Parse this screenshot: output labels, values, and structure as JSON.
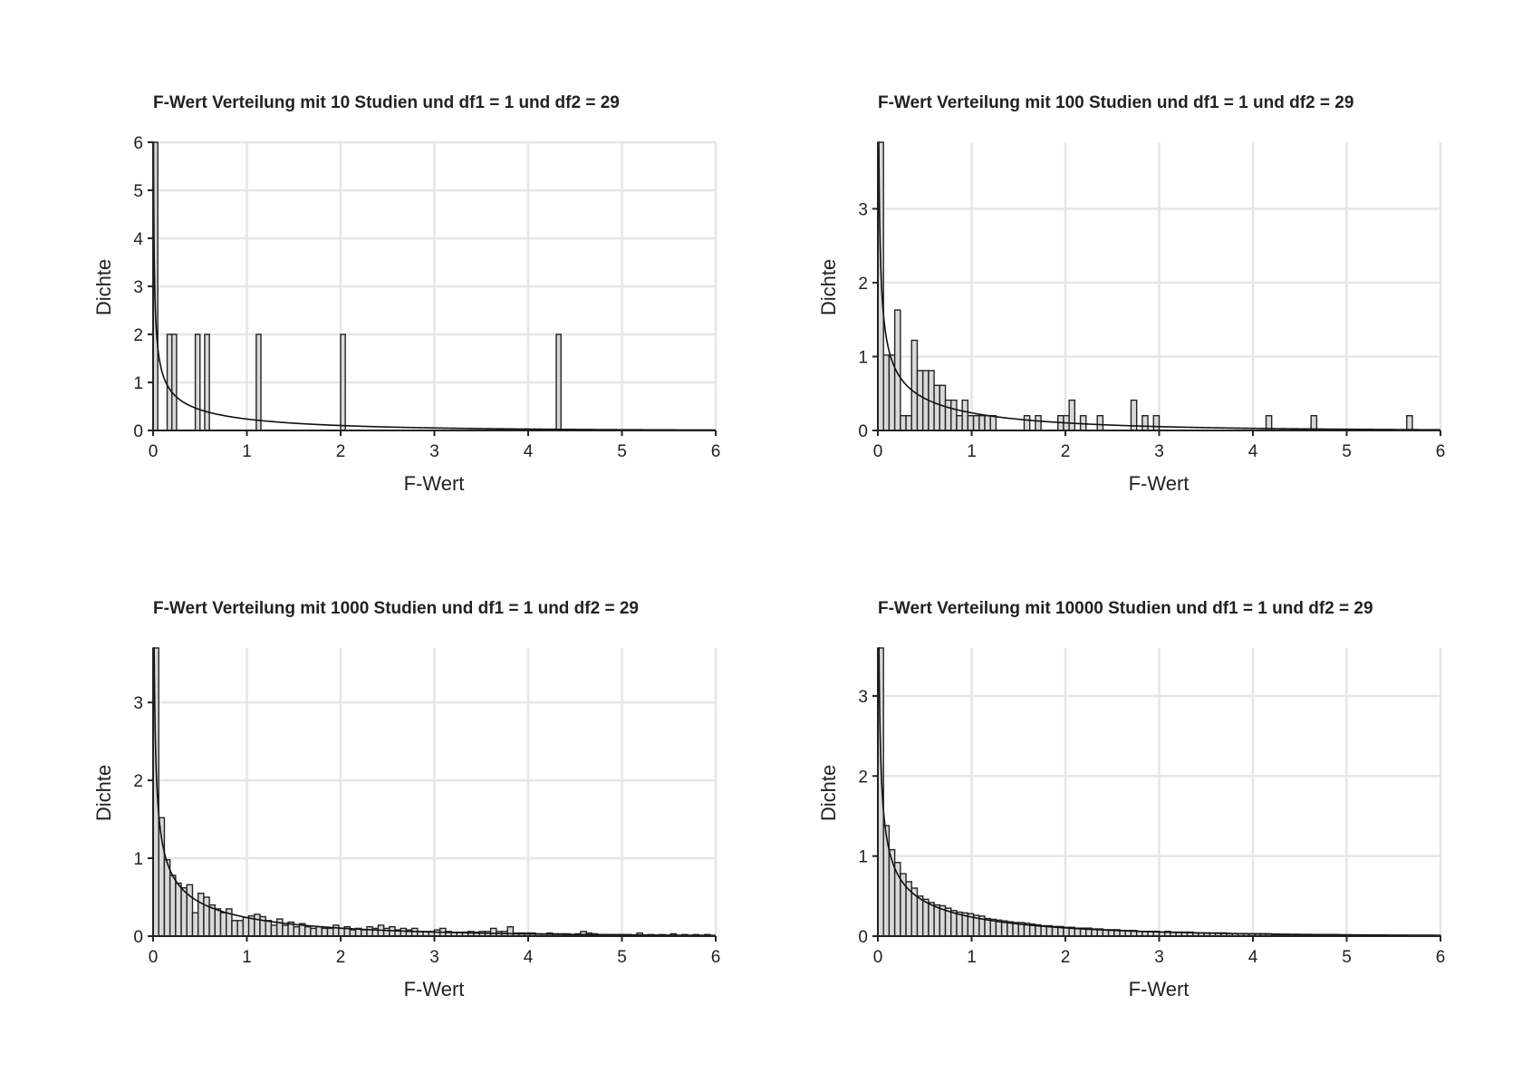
{
  "chart_data": [
    {
      "type": "bar",
      "title": "F-Wert Verteilung mit 10 Studien und df1 = 1 und df2 = 29",
      "xlabel": "F-Wert",
      "ylabel": "Dichte",
      "xlim": [
        0,
        6
      ],
      "ylim": [
        0,
        6
      ],
      "xticks": [
        0,
        1,
        2,
        3,
        4,
        5,
        6
      ],
      "yticks": [
        0,
        1,
        2,
        3,
        4,
        5,
        6
      ],
      "bin_width": 0.05,
      "grid": true,
      "density_curve": {
        "df1": 1,
        "df2": 29
      },
      "bars": [
        {
          "x": 0.0,
          "y": 6.0
        },
        {
          "x": 0.15,
          "y": 2.0
        },
        {
          "x": 0.2,
          "y": 2.0
        },
        {
          "x": 0.45,
          "y": 2.0
        },
        {
          "x": 0.55,
          "y": 2.0
        },
        {
          "x": 1.1,
          "y": 2.0
        },
        {
          "x": 2.0,
          "y": 2.0
        },
        {
          "x": 4.3,
          "y": 2.0
        }
      ]
    },
    {
      "type": "bar",
      "title": "F-Wert Verteilung mit 100 Studien und df1 = 1 und df2 = 29",
      "xlabel": "F-Wert",
      "ylabel": "Dichte",
      "xlim": [
        0,
        6
      ],
      "ylim": [
        0,
        3.9
      ],
      "xticks": [
        0,
        1,
        2,
        3,
        4,
        5,
        6
      ],
      "yticks": [
        0,
        1,
        2,
        3
      ],
      "bin_width": 0.06,
      "grid": true,
      "density_curve": {
        "df1": 1,
        "df2": 29
      },
      "bars": [
        {
          "x": 0.0,
          "y": 3.9
        },
        {
          "x": 0.06,
          "y": 1.02
        },
        {
          "x": 0.12,
          "y": 1.02
        },
        {
          "x": 0.18,
          "y": 1.63
        },
        {
          "x": 0.24,
          "y": 0.2
        },
        {
          "x": 0.3,
          "y": 0.2
        },
        {
          "x": 0.36,
          "y": 1.22
        },
        {
          "x": 0.42,
          "y": 0.81
        },
        {
          "x": 0.48,
          "y": 0.81
        },
        {
          "x": 0.54,
          "y": 0.81
        },
        {
          "x": 0.6,
          "y": 0.61
        },
        {
          "x": 0.66,
          "y": 0.61
        },
        {
          "x": 0.72,
          "y": 0.41
        },
        {
          "x": 0.78,
          "y": 0.41
        },
        {
          "x": 0.84,
          "y": 0.2
        },
        {
          "x": 0.9,
          "y": 0.41
        },
        {
          "x": 0.96,
          "y": 0.2
        },
        {
          "x": 1.02,
          "y": 0.2
        },
        {
          "x": 1.08,
          "y": 0.2
        },
        {
          "x": 1.14,
          "y": 0.2
        },
        {
          "x": 1.2,
          "y": 0.2
        },
        {
          "x": 1.56,
          "y": 0.2
        },
        {
          "x": 1.68,
          "y": 0.2
        },
        {
          "x": 1.92,
          "y": 0.2
        },
        {
          "x": 1.98,
          "y": 0.2
        },
        {
          "x": 2.04,
          "y": 0.41
        },
        {
          "x": 2.16,
          "y": 0.2
        },
        {
          "x": 2.34,
          "y": 0.2
        },
        {
          "x": 2.7,
          "y": 0.41
        },
        {
          "x": 2.82,
          "y": 0.2
        },
        {
          "x": 2.94,
          "y": 0.2
        },
        {
          "x": 4.14,
          "y": 0.2
        },
        {
          "x": 4.62,
          "y": 0.2
        },
        {
          "x": 5.64,
          "y": 0.2
        }
      ]
    },
    {
      "type": "bar",
      "title": "F-Wert Verteilung mit 1000 Studien und df1 = 1 und df2 = 29",
      "xlabel": "F-Wert",
      "ylabel": "Dichte",
      "xlim": [
        0,
        6
      ],
      "ylim": [
        0,
        3.7
      ],
      "xticks": [
        0,
        1,
        2,
        3,
        4,
        5,
        6
      ],
      "yticks": [
        0,
        1,
        2,
        3
      ],
      "bin_width": 0.06,
      "grid": true,
      "density_curve": {
        "df1": 1,
        "df2": 29
      },
      "bars": [
        {
          "x": 0.0,
          "y": 3.7
        },
        {
          "x": 0.06,
          "y": 1.52
        },
        {
          "x": 0.12,
          "y": 0.98
        },
        {
          "x": 0.18,
          "y": 0.78
        },
        {
          "x": 0.24,
          "y": 0.68
        },
        {
          "x": 0.3,
          "y": 0.62
        },
        {
          "x": 0.36,
          "y": 0.66
        },
        {
          "x": 0.42,
          "y": 0.3
        },
        {
          "x": 0.48,
          "y": 0.55
        },
        {
          "x": 0.54,
          "y": 0.5
        },
        {
          "x": 0.6,
          "y": 0.4
        },
        {
          "x": 0.66,
          "y": 0.35
        },
        {
          "x": 0.72,
          "y": 0.3
        },
        {
          "x": 0.78,
          "y": 0.35
        },
        {
          "x": 0.84,
          "y": 0.2
        },
        {
          "x": 0.9,
          "y": 0.2
        },
        {
          "x": 0.96,
          "y": 0.24
        },
        {
          "x": 1.02,
          "y": 0.26
        },
        {
          "x": 1.08,
          "y": 0.28
        },
        {
          "x": 1.14,
          "y": 0.25
        },
        {
          "x": 1.2,
          "y": 0.2
        },
        {
          "x": 1.26,
          "y": 0.14
        },
        {
          "x": 1.32,
          "y": 0.22
        },
        {
          "x": 1.38,
          "y": 0.14
        },
        {
          "x": 1.44,
          "y": 0.18
        },
        {
          "x": 1.5,
          "y": 0.12
        },
        {
          "x": 1.56,
          "y": 0.16
        },
        {
          "x": 1.62,
          "y": 0.12
        },
        {
          "x": 1.68,
          "y": 0.1
        },
        {
          "x": 1.74,
          "y": 0.12
        },
        {
          "x": 1.8,
          "y": 0.1
        },
        {
          "x": 1.86,
          "y": 0.1
        },
        {
          "x": 1.92,
          "y": 0.14
        },
        {
          "x": 1.98,
          "y": 0.1
        },
        {
          "x": 2.04,
          "y": 0.12
        },
        {
          "x": 2.1,
          "y": 0.08
        },
        {
          "x": 2.16,
          "y": 0.1
        },
        {
          "x": 2.22,
          "y": 0.08
        },
        {
          "x": 2.28,
          "y": 0.12
        },
        {
          "x": 2.34,
          "y": 0.1
        },
        {
          "x": 2.4,
          "y": 0.14
        },
        {
          "x": 2.46,
          "y": 0.1
        },
        {
          "x": 2.52,
          "y": 0.12
        },
        {
          "x": 2.58,
          "y": 0.08
        },
        {
          "x": 2.64,
          "y": 0.1
        },
        {
          "x": 2.7,
          "y": 0.08
        },
        {
          "x": 2.76,
          "y": 0.1
        },
        {
          "x": 2.82,
          "y": 0.06
        },
        {
          "x": 2.88,
          "y": 0.06
        },
        {
          "x": 2.94,
          "y": 0.06
        },
        {
          "x": 3.0,
          "y": 0.08
        },
        {
          "x": 3.06,
          "y": 0.1
        },
        {
          "x": 3.12,
          "y": 0.06
        },
        {
          "x": 3.18,
          "y": 0.05
        },
        {
          "x": 3.24,
          "y": 0.05
        },
        {
          "x": 3.3,
          "y": 0.05
        },
        {
          "x": 3.36,
          "y": 0.06
        },
        {
          "x": 3.42,
          "y": 0.05
        },
        {
          "x": 3.48,
          "y": 0.06
        },
        {
          "x": 3.54,
          "y": 0.06
        },
        {
          "x": 3.6,
          "y": 0.1
        },
        {
          "x": 3.66,
          "y": 0.06
        },
        {
          "x": 3.72,
          "y": 0.06
        },
        {
          "x": 3.78,
          "y": 0.12
        },
        {
          "x": 3.84,
          "y": 0.04
        },
        {
          "x": 3.9,
          "y": 0.04
        },
        {
          "x": 3.96,
          "y": 0.04
        },
        {
          "x": 4.02,
          "y": 0.04
        },
        {
          "x": 4.08,
          "y": 0.03
        },
        {
          "x": 4.14,
          "y": 0.03
        },
        {
          "x": 4.2,
          "y": 0.04
        },
        {
          "x": 4.26,
          "y": 0.03
        },
        {
          "x": 4.32,
          "y": 0.03
        },
        {
          "x": 4.38,
          "y": 0.03
        },
        {
          "x": 4.44,
          "y": 0.02
        },
        {
          "x": 4.5,
          "y": 0.03
        },
        {
          "x": 4.56,
          "y": 0.06
        },
        {
          "x": 4.62,
          "y": 0.04
        },
        {
          "x": 4.68,
          "y": 0.03
        },
        {
          "x": 4.74,
          "y": 0.02
        },
        {
          "x": 4.8,
          "y": 0.02
        },
        {
          "x": 4.86,
          "y": 0.02
        },
        {
          "x": 4.92,
          "y": 0.02
        },
        {
          "x": 4.98,
          "y": 0.02
        },
        {
          "x": 5.04,
          "y": 0.02
        },
        {
          "x": 5.16,
          "y": 0.04
        },
        {
          "x": 5.28,
          "y": 0.02
        },
        {
          "x": 5.4,
          "y": 0.02
        },
        {
          "x": 5.52,
          "y": 0.03
        },
        {
          "x": 5.64,
          "y": 0.02
        },
        {
          "x": 5.76,
          "y": 0.02
        },
        {
          "x": 5.88,
          "y": 0.02
        }
      ]
    },
    {
      "type": "bar",
      "title": "F-Wert Verteilung mit 10000 Studien und df1 = 1 und df2 = 29",
      "xlabel": "F-Wert",
      "ylabel": "Dichte",
      "xlim": [
        0,
        6
      ],
      "ylim": [
        0,
        3.6
      ],
      "xticks": [
        0,
        1,
        2,
        3,
        4,
        5,
        6
      ],
      "yticks": [
        0,
        1,
        2,
        3
      ],
      "bin_width": 0.06,
      "grid": true,
      "density_curve": {
        "df1": 1,
        "df2": 29
      },
      "bars": [
        {
          "x": 0.0,
          "y": 3.6
        },
        {
          "x": 0.06,
          "y": 1.38
        },
        {
          "x": 0.12,
          "y": 1.08
        },
        {
          "x": 0.18,
          "y": 0.92
        },
        {
          "x": 0.24,
          "y": 0.78
        },
        {
          "x": 0.3,
          "y": 0.68
        },
        {
          "x": 0.36,
          "y": 0.6
        },
        {
          "x": 0.42,
          "y": 0.5
        },
        {
          "x": 0.48,
          "y": 0.46
        },
        {
          "x": 0.54,
          "y": 0.42
        },
        {
          "x": 0.6,
          "y": 0.39
        },
        {
          "x": 0.66,
          "y": 0.38
        },
        {
          "x": 0.72,
          "y": 0.35
        },
        {
          "x": 0.78,
          "y": 0.32
        },
        {
          "x": 0.84,
          "y": 0.3
        },
        {
          "x": 0.9,
          "y": 0.29
        },
        {
          "x": 0.96,
          "y": 0.28
        },
        {
          "x": 1.02,
          "y": 0.26
        },
        {
          "x": 1.08,
          "y": 0.25
        },
        {
          "x": 1.14,
          "y": 0.22
        },
        {
          "x": 1.2,
          "y": 0.21
        },
        {
          "x": 1.26,
          "y": 0.2
        },
        {
          "x": 1.32,
          "y": 0.19
        },
        {
          "x": 1.38,
          "y": 0.18
        },
        {
          "x": 1.44,
          "y": 0.17
        },
        {
          "x": 1.5,
          "y": 0.17
        },
        {
          "x": 1.56,
          "y": 0.16
        },
        {
          "x": 1.62,
          "y": 0.15
        },
        {
          "x": 1.68,
          "y": 0.14
        },
        {
          "x": 1.74,
          "y": 0.13
        },
        {
          "x": 1.8,
          "y": 0.13
        },
        {
          "x": 1.86,
          "y": 0.12
        },
        {
          "x": 1.92,
          "y": 0.12
        },
        {
          "x": 1.98,
          "y": 0.11
        },
        {
          "x": 2.04,
          "y": 0.11
        },
        {
          "x": 2.1,
          "y": 0.1
        },
        {
          "x": 2.16,
          "y": 0.1
        },
        {
          "x": 2.22,
          "y": 0.1
        },
        {
          "x": 2.28,
          "y": 0.09
        },
        {
          "x": 2.34,
          "y": 0.09
        },
        {
          "x": 2.4,
          "y": 0.08
        },
        {
          "x": 2.46,
          "y": 0.08
        },
        {
          "x": 2.52,
          "y": 0.08
        },
        {
          "x": 2.58,
          "y": 0.07
        },
        {
          "x": 2.64,
          "y": 0.07
        },
        {
          "x": 2.7,
          "y": 0.07
        },
        {
          "x": 2.76,
          "y": 0.06
        },
        {
          "x": 2.82,
          "y": 0.06
        },
        {
          "x": 2.88,
          "y": 0.06
        },
        {
          "x": 2.94,
          "y": 0.06
        },
        {
          "x": 3.0,
          "y": 0.05
        },
        {
          "x": 3.06,
          "y": 0.06
        },
        {
          "x": 3.12,
          "y": 0.05
        },
        {
          "x": 3.18,
          "y": 0.05
        },
        {
          "x": 3.24,
          "y": 0.05
        },
        {
          "x": 3.3,
          "y": 0.05
        },
        {
          "x": 3.36,
          "y": 0.04
        },
        {
          "x": 3.42,
          "y": 0.04
        },
        {
          "x": 3.48,
          "y": 0.04
        },
        {
          "x": 3.54,
          "y": 0.04
        },
        {
          "x": 3.6,
          "y": 0.04
        },
        {
          "x": 3.66,
          "y": 0.04
        },
        {
          "x": 3.72,
          "y": 0.03
        },
        {
          "x": 3.78,
          "y": 0.03
        },
        {
          "x": 3.84,
          "y": 0.03
        },
        {
          "x": 3.9,
          "y": 0.03
        },
        {
          "x": 3.96,
          "y": 0.03
        },
        {
          "x": 4.02,
          "y": 0.03
        },
        {
          "x": 4.08,
          "y": 0.03
        },
        {
          "x": 4.14,
          "y": 0.03
        },
        {
          "x": 4.2,
          "y": 0.02
        },
        {
          "x": 4.26,
          "y": 0.02
        },
        {
          "x": 4.32,
          "y": 0.02
        },
        {
          "x": 4.38,
          "y": 0.02
        },
        {
          "x": 4.44,
          "y": 0.02
        },
        {
          "x": 4.5,
          "y": 0.02
        },
        {
          "x": 4.56,
          "y": 0.02
        },
        {
          "x": 4.62,
          "y": 0.02
        },
        {
          "x": 4.68,
          "y": 0.02
        },
        {
          "x": 4.74,
          "y": 0.02
        },
        {
          "x": 4.8,
          "y": 0.02
        },
        {
          "x": 4.86,
          "y": 0.02
        },
        {
          "x": 4.92,
          "y": 0.01
        },
        {
          "x": 4.98,
          "y": 0.01
        },
        {
          "x": 5.04,
          "y": 0.01
        },
        {
          "x": 5.1,
          "y": 0.01
        },
        {
          "x": 5.16,
          "y": 0.01
        },
        {
          "x": 5.22,
          "y": 0.01
        },
        {
          "x": 5.28,
          "y": 0.01
        },
        {
          "x": 5.34,
          "y": 0.01
        },
        {
          "x": 5.4,
          "y": 0.01
        },
        {
          "x": 5.46,
          "y": 0.01
        },
        {
          "x": 5.52,
          "y": 0.01
        },
        {
          "x": 5.58,
          "y": 0.01
        },
        {
          "x": 5.64,
          "y": 0.01
        },
        {
          "x": 5.7,
          "y": 0.01
        },
        {
          "x": 5.76,
          "y": 0.01
        },
        {
          "x": 5.82,
          "y": 0.01
        },
        {
          "x": 5.88,
          "y": 0.01
        },
        {
          "x": 5.94,
          "y": 0.01
        }
      ]
    }
  ]
}
